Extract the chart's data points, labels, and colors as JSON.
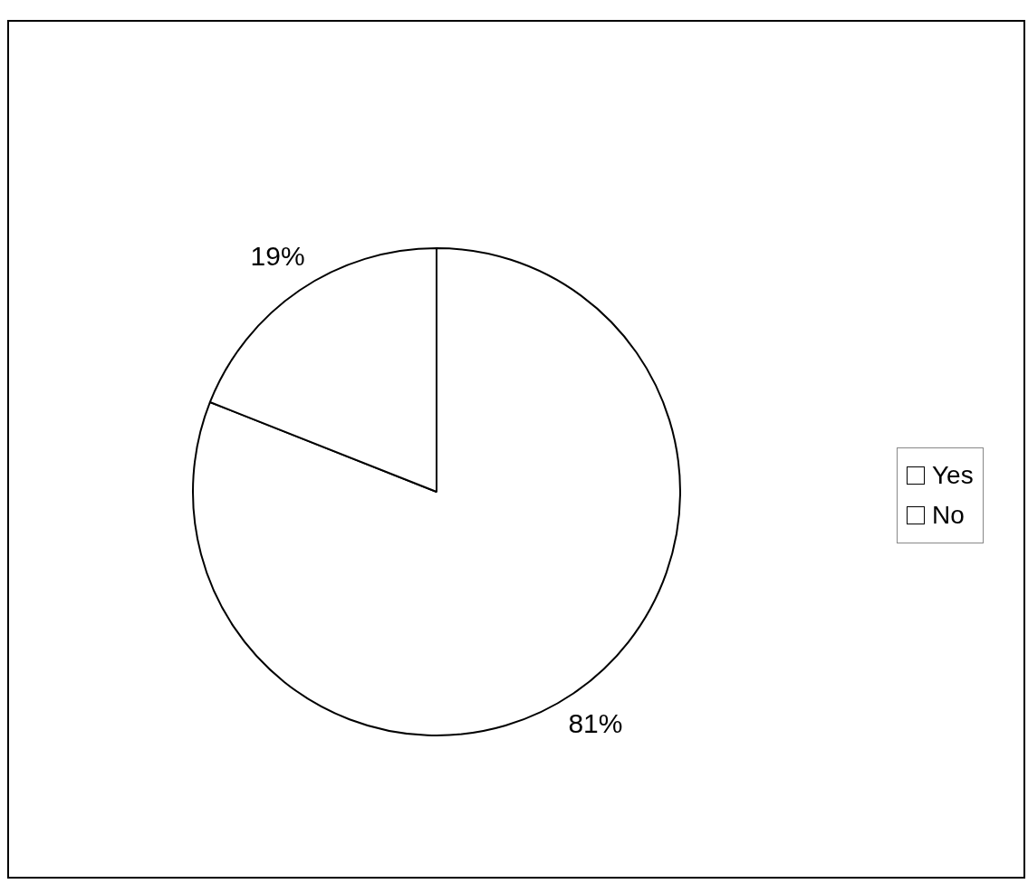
{
  "chart_data": {
    "type": "pie",
    "categories": [
      "Yes",
      "No"
    ],
    "values": [
      81,
      19
    ],
    "colors": [
      "#ffffff",
      "#ffffff"
    ],
    "value_labels": [
      "81%",
      "19%"
    ],
    "legend": "right"
  }
}
